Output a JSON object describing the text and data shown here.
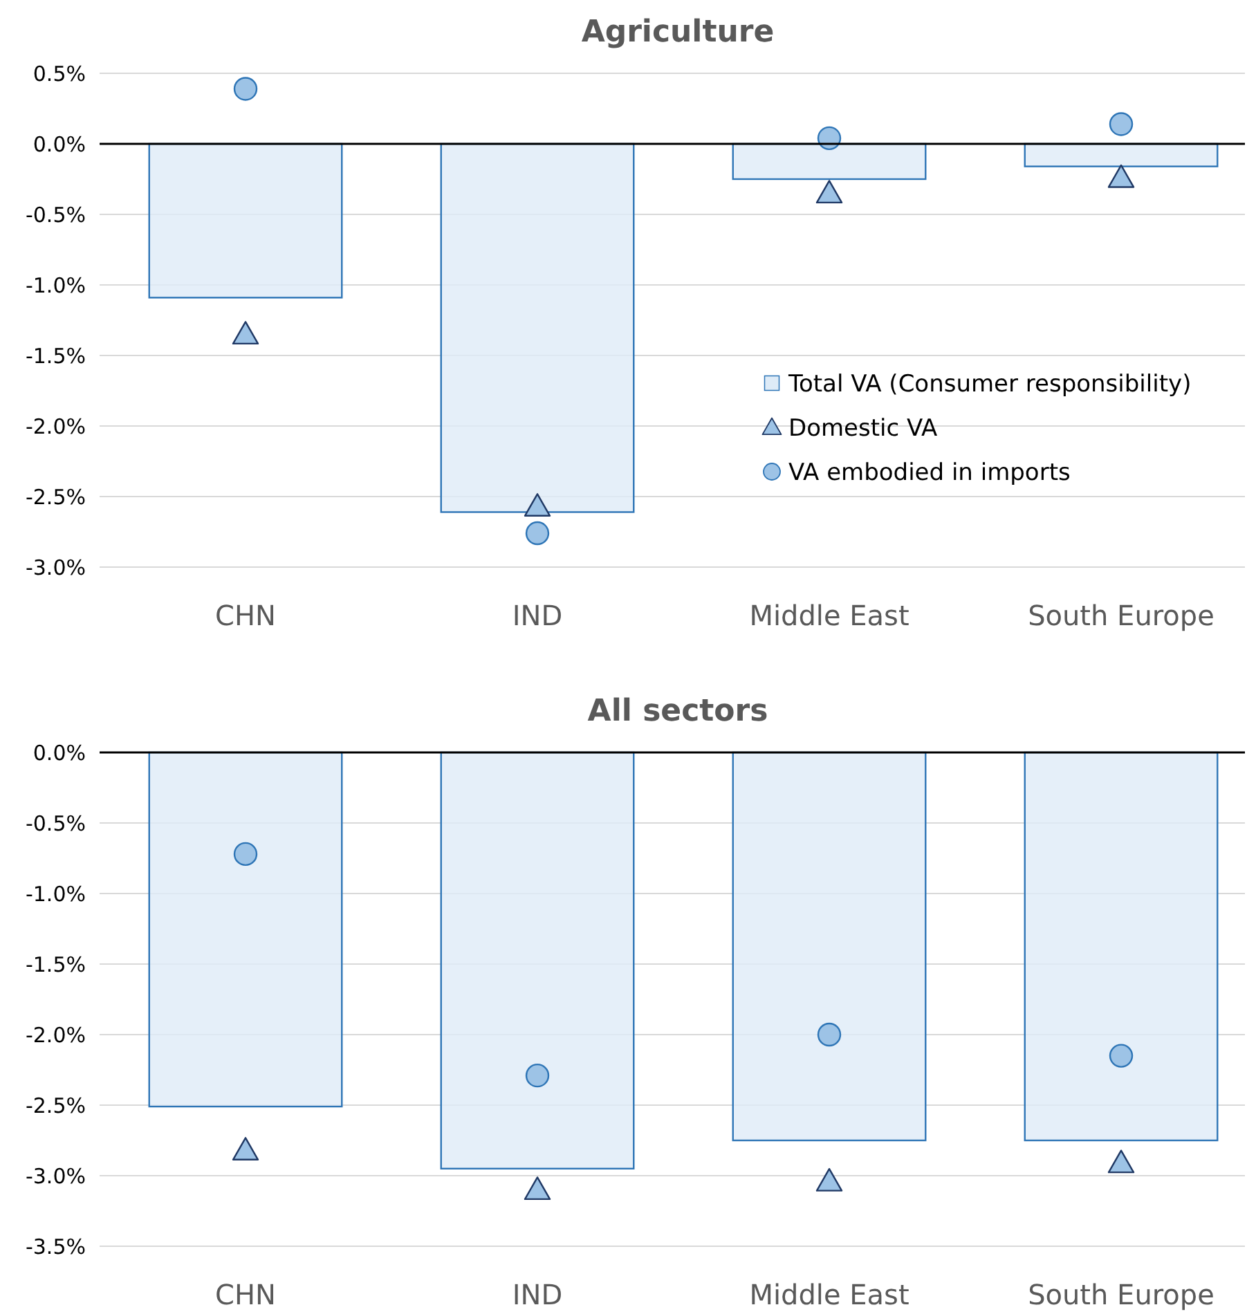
{
  "chart_data": [
    {
      "type": "bar",
      "title": "Agriculture",
      "categories": [
        "CHN",
        "IND",
        "Middle East",
        "South Europe"
      ],
      "series": [
        {
          "name": "Total VA (Consumer responsibility)",
          "color": "#deebf7",
          "values": [
            -1.09,
            -2.61,
            -0.25,
            -0.16
          ]
        },
        {
          "name": "Domestic VA",
          "type": "scatter",
          "marker": "triangle",
          "color": "#9dc3e6",
          "values": [
            -1.35,
            -2.57,
            -0.35,
            -0.24
          ]
        },
        {
          "name": "VA embodied in imports",
          "type": "scatter",
          "marker": "circle",
          "color": "#9dc3e6",
          "values": [
            0.39,
            -2.76,
            0.04,
            0.14
          ]
        }
      ],
      "ylim": [
        -3,
        0.5
      ],
      "yticks": [
        {
          "value": -3,
          "label": "-3.0%"
        },
        {
          "value": -2.5,
          "label": "-2.5%"
        },
        {
          "value": -2,
          "label": "-2.0%"
        },
        {
          "value": -1.5,
          "label": "-1.5%"
        },
        {
          "value": -1,
          "label": "-1.0%"
        },
        {
          "value": -0.5,
          "label": "-0.5%"
        },
        {
          "value": 0,
          "label": "0.0%"
        },
        {
          "value": 0.5,
          "label": "0.5%"
        }
      ],
      "grid": "y",
      "legend": "right"
    },
    {
      "type": "bar",
      "title": "All sectors",
      "categories": [
        "CHN",
        "IND",
        "Middle East",
        "South Europe"
      ],
      "series": [
        {
          "color": "#deebf7",
          "values": [
            -2.51,
            -2.95,
            -2.75,
            -2.75
          ]
        },
        {
          "type": "scatter",
          "marker": "triangle",
          "color": "#9dc3e6",
          "values": [
            -2.82,
            -3.1,
            -3.04,
            -2.91
          ]
        },
        {
          "type": "scatter",
          "marker": "circle",
          "color": "#9dc3e6",
          "values": [
            -0.72,
            -2.29,
            -2.0,
            -2.15
          ]
        }
      ],
      "ylim": [
        -3.5,
        0
      ],
      "yticks": [
        {
          "value": -3.5,
          "label": "-3.5%"
        },
        {
          "value": -3,
          "label": "-3.0%"
        },
        {
          "value": -2.5,
          "label": "-2.5%"
        },
        {
          "value": -2,
          "label": "-2.0%"
        },
        {
          "value": -1.5,
          "label": "-1.5%"
        },
        {
          "value": -1,
          "label": "-1.0%"
        },
        {
          "value": -0.5,
          "label": "-0.5%"
        },
        {
          "value": 0,
          "label": "0.0%"
        }
      ],
      "grid": "y",
      "legend": false
    }
  ]
}
